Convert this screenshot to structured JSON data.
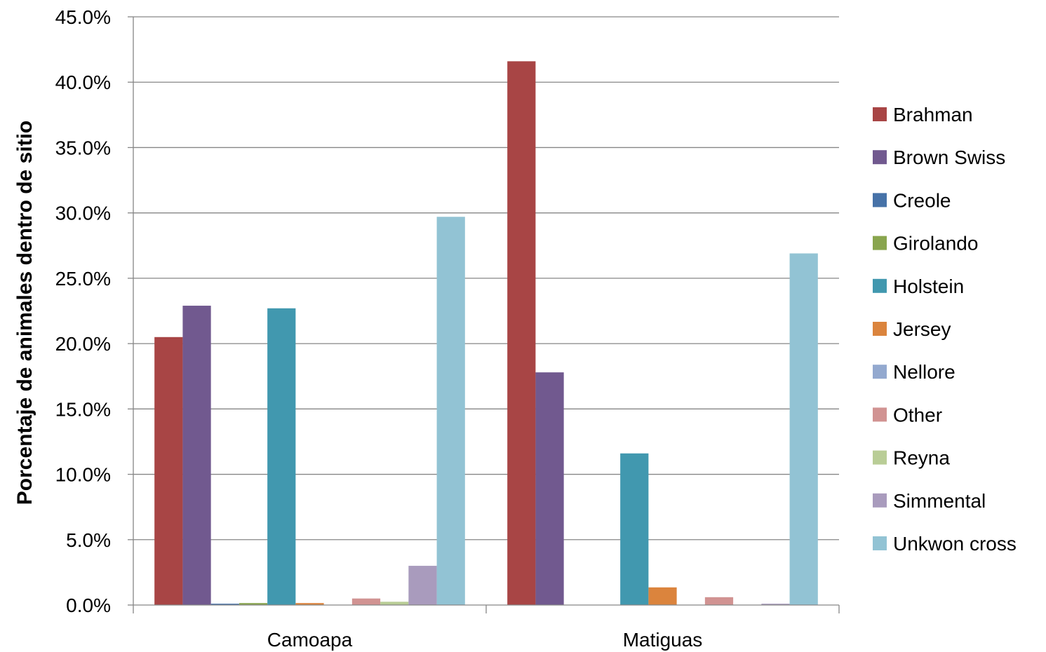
{
  "chart_data": {
    "type": "bar",
    "categories": [
      "Camoapa",
      "Matiguas"
    ],
    "ylabel": "Porcentaje de animales dentro de sitio",
    "xlabel": "",
    "ylim": [
      0,
      45
    ],
    "yticks": [
      "0.0%",
      "5.0%",
      "10.0%",
      "15.0%",
      "20.0%",
      "25.0%",
      "30.0%",
      "35.0%",
      "40.0%",
      "45.0%"
    ],
    "grid": true,
    "legend_position": "right",
    "series": [
      {
        "name": "Brahman",
        "color": "#A84545",
        "values": [
          20.5,
          41.6
        ]
      },
      {
        "name": "Brown Swiss",
        "color": "#71598F",
        "values": [
          22.9,
          17.8
        ]
      },
      {
        "name": "Creole",
        "color": "#4672A8",
        "values": [
          0.1,
          0.0
        ]
      },
      {
        "name": "Girolando",
        "color": "#89A54E",
        "values": [
          0.15,
          0.0
        ]
      },
      {
        "name": "Holstein",
        "color": "#4198AF",
        "values": [
          22.7,
          11.6
        ]
      },
      {
        "name": "Jersey",
        "color": "#DB843D",
        "values": [
          0.15,
          1.35
        ]
      },
      {
        "name": "Nellore",
        "color": "#93A9CF",
        "values": [
          0.0,
          0.0
        ]
      },
      {
        "name": "Other",
        "color": "#D19392",
        "values": [
          0.5,
          0.6
        ]
      },
      {
        "name": "Reyna",
        "color": "#B9CD96",
        "values": [
          0.25,
          0.0
        ]
      },
      {
        "name": "Simmental",
        "color": "#A99BBD",
        "values": [
          3.0,
          0.1
        ]
      },
      {
        "name": "Unkwon cross",
        "color": "#92C3D4",
        "values": [
          29.7,
          26.9
        ]
      }
    ]
  }
}
